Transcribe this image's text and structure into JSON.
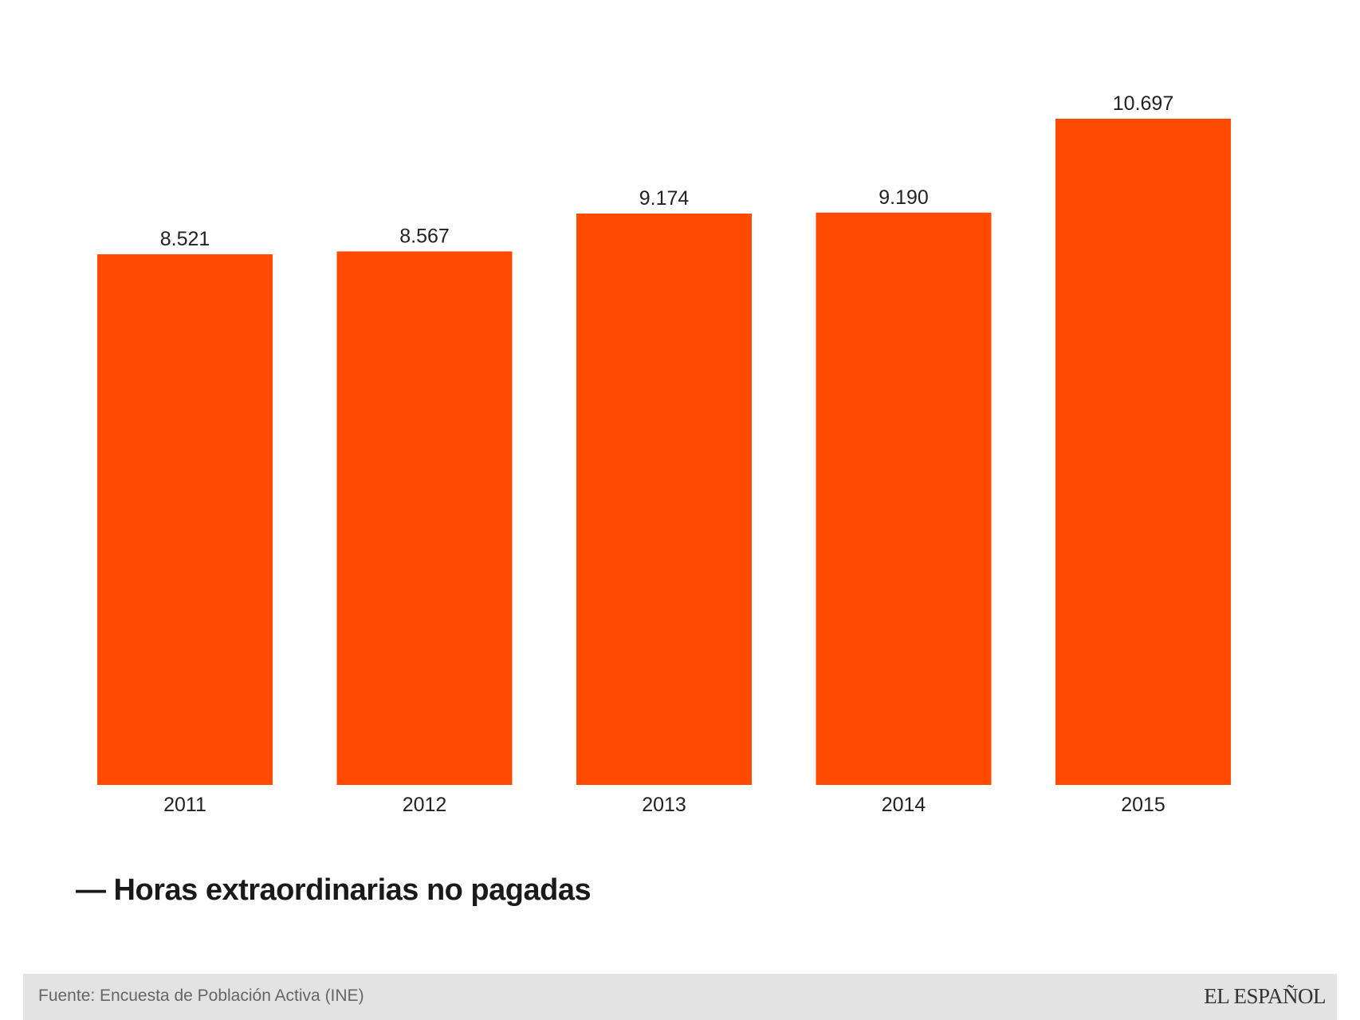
{
  "chart_data": {
    "type": "bar",
    "categories": [
      "2011",
      "2012",
      "2013",
      "2014",
      "2015"
    ],
    "values": [
      8521,
      8567,
      9174,
      9190,
      10697
    ],
    "value_labels": [
      "8.521",
      "8.567",
      "9.174",
      "9.190",
      "10.697"
    ],
    "series": [
      {
        "name": "Horas extraordinarias no pagadas",
        "values": [
          8521,
          8567,
          9174,
          9190,
          10697
        ]
      }
    ],
    "title": "",
    "xlabel": "",
    "ylabel": "",
    "ylim": [
      0,
      10697
    ],
    "grid": false,
    "legend_position": "bottom-left",
    "bar_color": "#ff4a00"
  },
  "legend": {
    "text": "— Horas extraordinarias no pagadas"
  },
  "footer": {
    "source": "Fuente: Encuesta de Población Activa (INE)",
    "brand": "EL ESPAÑOL"
  }
}
